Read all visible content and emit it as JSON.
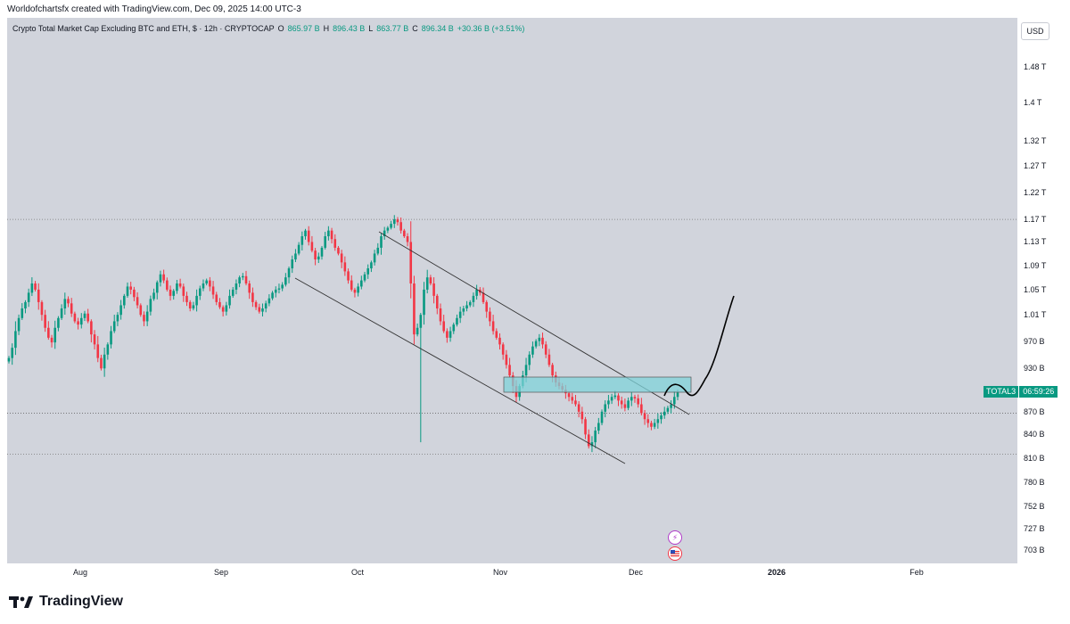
{
  "attribution": "Worldofchartsfx created with TradingView.com, Dec 09, 2025 14:00 UTC-3",
  "legend": {
    "title": "Crypto Total Market Cap Excluding BTC and ETH, $ · 12h · CRYPTOCAP",
    "o_label": "O",
    "o_value": "865.97 B",
    "h_label": "H",
    "h_value": "896.43 B",
    "l_label": "L",
    "l_value": "863.77 B",
    "c_label": "C",
    "c_value": "896.34 B",
    "change": "+30.36 B (+3.51%)"
  },
  "currency_button": "USD",
  "ticker": {
    "symbol": "TOTAL3",
    "countdown": "06:59:26"
  },
  "footer": {
    "brand": "TradingView"
  },
  "colors": {
    "up": "#089981",
    "down": "#f23645",
    "zone": "#7fd3d9"
  },
  "chart_data": {
    "type": "candlestick",
    "title": "Crypto Total Market Cap Excluding BTC and ETH, $ · 12h · CRYPTOCAP",
    "y_unit": "B",
    "y_scale": "log",
    "y_ticks": [
      {
        "label": "1.48 T",
        "value": 1480
      },
      {
        "label": "1.4 T",
        "value": 1400
      },
      {
        "label": "1.32 T",
        "value": 1320
      },
      {
        "label": "1.27 T",
        "value": 1270
      },
      {
        "label": "1.22 T",
        "value": 1220
      },
      {
        "label": "1.17 T",
        "value": 1170
      },
      {
        "label": "1.13 T",
        "value": 1130
      },
      {
        "label": "1.09 T",
        "value": 1090
      },
      {
        "label": "1.05 T",
        "value": 1050
      },
      {
        "label": "1.01 T",
        "value": 1010
      },
      {
        "label": "970 B",
        "value": 970
      },
      {
        "label": "930 B",
        "value": 930
      },
      {
        "label": "870 B",
        "value": 870
      },
      {
        "label": "840 B",
        "value": 840
      },
      {
        "label": "810 B",
        "value": 810
      },
      {
        "label": "780 B",
        "value": 780
      },
      {
        "label": "752 B",
        "value": 752
      },
      {
        "label": "727 B",
        "value": 727
      },
      {
        "label": "703 B",
        "value": 703
      }
    ],
    "x_ticks": [
      {
        "label": "Aug",
        "bold": false
      },
      {
        "label": "Sep",
        "bold": false
      },
      {
        "label": "Oct",
        "bold": false
      },
      {
        "label": "Nov",
        "bold": false
      },
      {
        "label": "Dec",
        "bold": false
      },
      {
        "label": "2026",
        "bold": true
      },
      {
        "label": "Feb",
        "bold": false
      }
    ],
    "closes": [
      945,
      960,
      985,
      1005,
      1020,
      1030,
      1045,
      1060,
      1050,
      1030,
      1010,
      990,
      975,
      968,
      990,
      1005,
      1020,
      1035,
      1028,
      1012,
      1000,
      995,
      1005,
      1012,
      1000,
      980,
      965,
      945,
      930,
      950,
      965,
      985,
      1000,
      1010,
      1025,
      1040,
      1055,
      1050,
      1038,
      1025,
      1010,
      1000,
      1015,
      1035,
      1045,
      1062,
      1075,
      1065,
      1050,
      1040,
      1048,
      1060,
      1055,
      1040,
      1030,
      1020,
      1025,
      1040,
      1052,
      1060,
      1065,
      1055,
      1042,
      1030,
      1022,
      1015,
      1025,
      1040,
      1050,
      1060,
      1070,
      1072,
      1060,
      1045,
      1030,
      1022,
      1015,
      1020,
      1028,
      1036,
      1045,
      1050,
      1052,
      1058,
      1070,
      1085,
      1100,
      1110,
      1125,
      1140,
      1150,
      1130,
      1115,
      1100,
      1105,
      1120,
      1140,
      1150,
      1135,
      1120,
      1110,
      1095,
      1080,
      1065,
      1050,
      1045,
      1055,
      1065,
      1075,
      1085,
      1095,
      1110,
      1120,
      1140,
      1150,
      1155,
      1162,
      1170,
      1165,
      1150,
      1140,
      1130,
      1060,
      980,
      990,
      1010,
      1050,
      1070,
      1060,
      1040,
      1020,
      1000,
      985,
      975,
      985,
      995,
      1005,
      1015,
      1020,
      1025,
      1030,
      1040,
      1050,
      1045,
      1030,
      1015,
      1000,
      985,
      975,
      965,
      950,
      935,
      920,
      905,
      890,
      905,
      920,
      935,
      950,
      962,
      970,
      975,
      965,
      950,
      935,
      920,
      910,
      905,
      900,
      895,
      890,
      885,
      880,
      870,
      860,
      840,
      825,
      830,
      845,
      855,
      870,
      880,
      885,
      890,
      892,
      885,
      880,
      875,
      885,
      890,
      888,
      880,
      868,
      860,
      855,
      850,
      855,
      860,
      865,
      870,
      875,
      880,
      890,
      896
    ]
  }
}
